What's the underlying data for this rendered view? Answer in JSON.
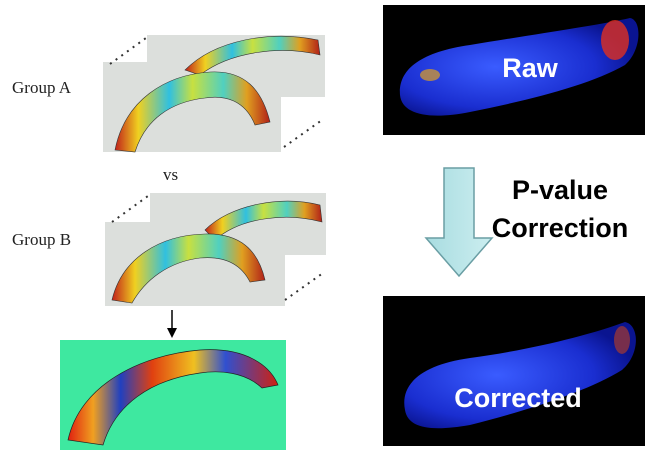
{
  "labels": {
    "group_a": "Group A",
    "vs": "vs",
    "group_b": "Group B",
    "raw": "Raw",
    "correction_line1": "P-value",
    "correction_line2": "Correction",
    "corrected": "Corrected"
  }
}
